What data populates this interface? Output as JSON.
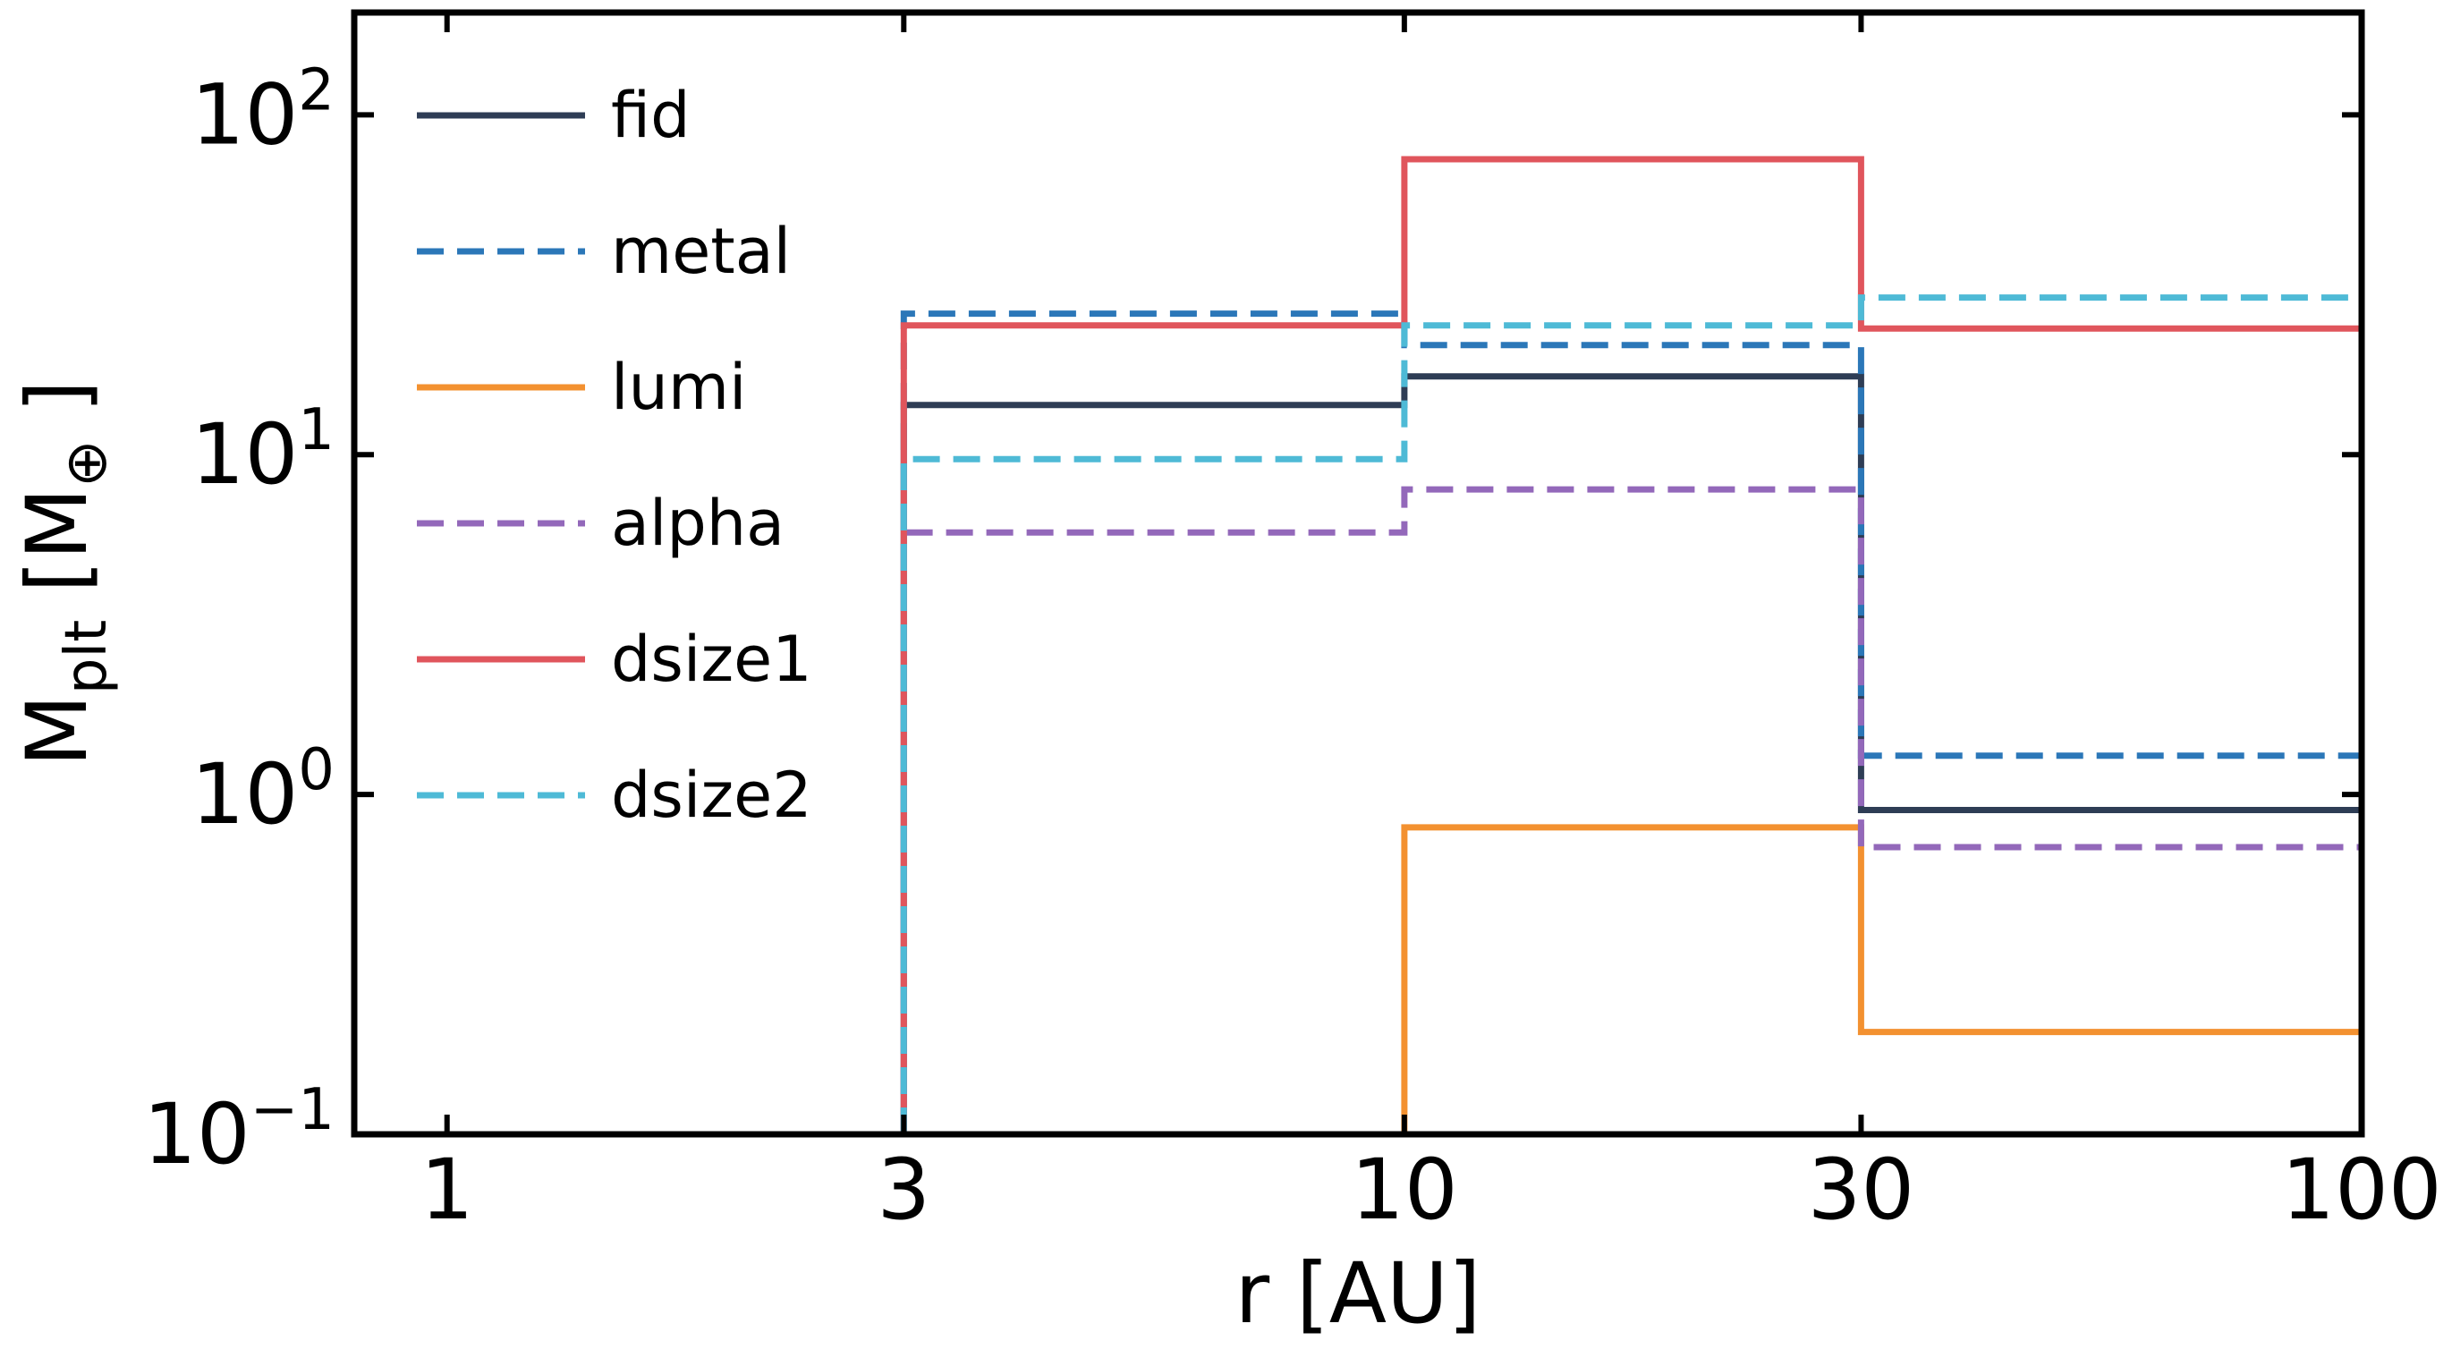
{
  "chart_data": {
    "type": "line",
    "step": true,
    "x_scale": "log",
    "y_scale": "log",
    "xlabel": "r [AU]",
    "ylabel": {
      "base": "M",
      "sub": "plt",
      "unit_open": " [M",
      "unit_sub": "⊕",
      "unit_close": " ]"
    },
    "xlim": [
      0.8,
      100
    ],
    "ylim": [
      0.1,
      200
    ],
    "x_ticks": [
      {
        "value": 1,
        "label": "1"
      },
      {
        "value": 3,
        "label": "3"
      },
      {
        "value": 10,
        "label": "10"
      },
      {
        "value": 30,
        "label": "30"
      },
      {
        "value": 100,
        "label": "100"
      }
    ],
    "y_ticks": [
      {
        "value": 0.1,
        "base": "10",
        "exp": "−1"
      },
      {
        "value": 1,
        "base": "10",
        "exp": "0"
      },
      {
        "value": 10,
        "base": "10",
        "exp": "1"
      },
      {
        "value": 100,
        "base": "10",
        "exp": "2"
      }
    ],
    "bin_edges": [
      3,
      10,
      30,
      100
    ],
    "legend_position": "upper-left",
    "grid": false,
    "series": [
      {
        "name": "fid",
        "color": "#2e3d55",
        "dash": "solid",
        "values": [
          14,
          17,
          0.9
        ]
      },
      {
        "name": "metal",
        "color": "#2b77b8",
        "dash": "dashed",
        "values": [
          26,
          21,
          1.3
        ]
      },
      {
        "name": "lumi",
        "color": "#f39130",
        "dash": "solid",
        "values": [
          0.1,
          0.8,
          0.2
        ]
      },
      {
        "name": "alpha",
        "color": "#9368ba",
        "dash": "dashed",
        "values": [
          5.9,
          7.9,
          0.7
        ]
      },
      {
        "name": "dsize1",
        "color": "#e0555c",
        "dash": "solid",
        "values": [
          24,
          74,
          23.5
        ]
      },
      {
        "name": "dsize2",
        "color": "#4ebad6",
        "dash": "dashed",
        "values": [
          9.7,
          24,
          29
        ]
      }
    ]
  }
}
